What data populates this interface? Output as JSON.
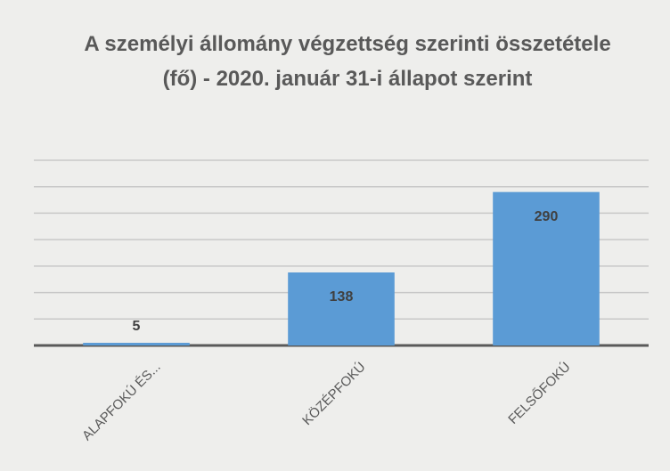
{
  "chart_data": {
    "type": "bar",
    "title": "A személyi állomány végzettség szerinti összetétele (fő) - 2020. január 31-i állapot szerint",
    "categories": [
      "ALAPFOKÚ ÉS...",
      "KÖZÉPFOKÚ",
      "FELSŐFOKÚ"
    ],
    "values": [
      5,
      138,
      290
    ],
    "color": "#5b9bd5",
    "ylim": [
      0,
      350
    ],
    "yticks": [
      0,
      50,
      100,
      150,
      200,
      250,
      300,
      350
    ],
    "grid": true
  }
}
